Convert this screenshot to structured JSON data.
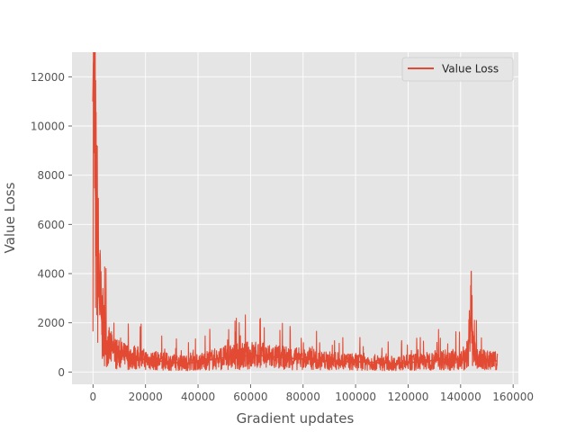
{
  "chart_data": {
    "type": "line",
    "title": "",
    "xlabel": "Gradient updates",
    "ylabel": "Value Loss",
    "xlim": [
      -8000,
      162000
    ],
    "ylim": [
      -500,
      13000
    ],
    "x_ticks": [
      0,
      20000,
      40000,
      60000,
      80000,
      100000,
      120000,
      140000,
      160000
    ],
    "x_tick_labels": [
      "0",
      "20000",
      "40000",
      "60000",
      "80000",
      "100000",
      "120000",
      "140000",
      "160000"
    ],
    "y_ticks": [
      0,
      2000,
      4000,
      6000,
      8000,
      10000,
      12000
    ],
    "y_tick_labels": [
      "0",
      "2000",
      "4000",
      "6000",
      "8000",
      "10000",
      "12000"
    ],
    "grid": true,
    "legend_position": "top-right",
    "style": "ggplot",
    "colors": {
      "series": "#E24A33",
      "plot_bg": "#E5E5E5",
      "grid": "#FFFFFF"
    },
    "series": [
      {
        "name": "Value Loss",
        "x": [
          0,
          200,
          400,
          600,
          800,
          1000,
          1200,
          1500,
          1800,
          2200,
          2600,
          3000,
          3500,
          4000,
          4500,
          5000,
          6000,
          7000,
          8000,
          10000,
          12000,
          14000,
          16000,
          18000,
          20000,
          22000,
          25000,
          28000,
          30000,
          32000,
          35000,
          38000,
          40000,
          42000,
          45000,
          48000,
          50000,
          52000,
          55000,
          58000,
          60000,
          62000,
          65000,
          68000,
          70000,
          72000,
          75000,
          78000,
          80000,
          82000,
          83000,
          85000,
          88000,
          90000,
          92000,
          95000,
          98000,
          100000,
          103000,
          105000,
          108000,
          110000,
          112000,
          115000,
          118000,
          120000,
          122000,
          125000,
          128000,
          130000,
          132000,
          135000,
          138000,
          140000,
          142000,
          143500,
          144000,
          145000,
          147000,
          150000,
          152000,
          154000
        ],
        "y": [
          11000,
          12500,
          12700,
          9500,
          8000,
          7000,
          6200,
          5600,
          4800,
          3800,
          3200,
          2400,
          2000,
          1700,
          1400,
          1200,
          1000,
          900,
          800,
          700,
          650,
          620,
          600,
          550,
          500,
          480,
          450,
          420,
          400,
          380,
          360,
          380,
          400,
          450,
          500,
          550,
          580,
          600,
          620,
          650,
          700,
          680,
          650,
          620,
          600,
          580,
          560,
          540,
          520,
          500,
          600,
          480,
          460,
          450,
          440,
          430,
          420,
          410,
          420,
          400,
          380,
          370,
          360,
          350,
          360,
          380,
          400,
          420,
          450,
          480,
          500,
          520,
          500,
          480,
          500,
          1500,
          2500,
          700,
          500,
          480,
          460,
          450
        ]
      }
    ]
  }
}
